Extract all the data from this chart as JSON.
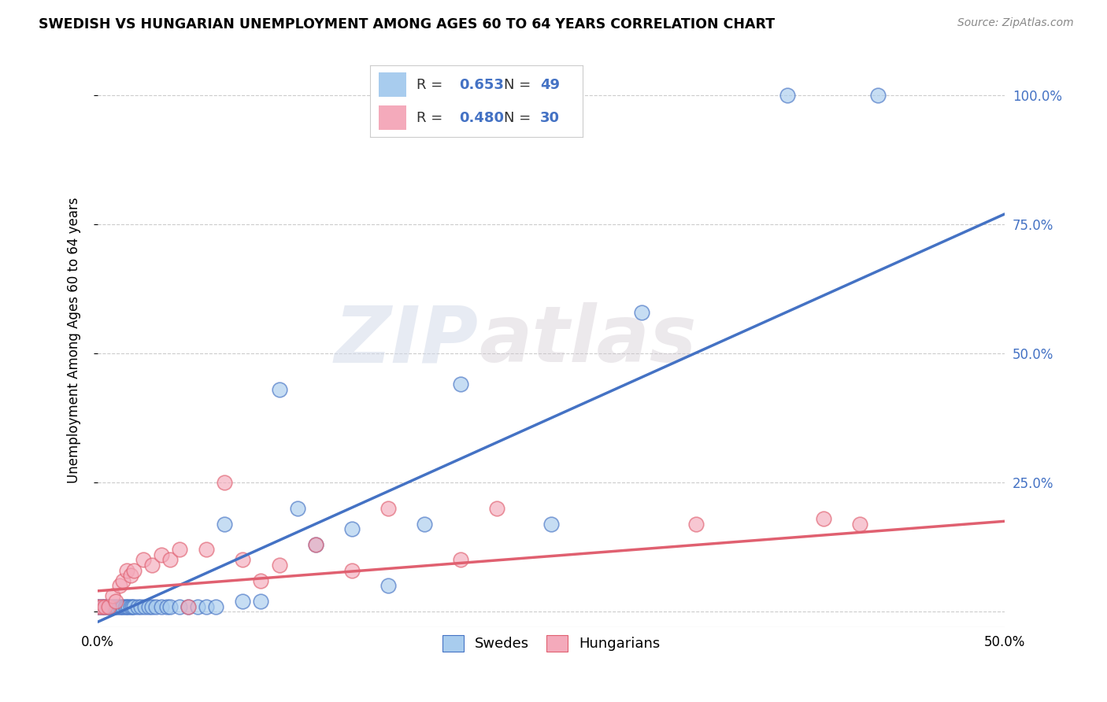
{
  "title": "SWEDISH VS HUNGARIAN UNEMPLOYMENT AMONG AGES 60 TO 64 YEARS CORRELATION CHART",
  "source": "Source: ZipAtlas.com",
  "ylabel": "Unemployment Among Ages 60 to 64 years",
  "xlim": [
    0.0,
    0.5
  ],
  "ylim": [
    -0.03,
    1.08
  ],
  "sweden_color": "#A8CCEE",
  "hungary_color": "#F4AABB",
  "sweden_line_color": "#4472C4",
  "hungary_line_color": "#E06070",
  "sweden_R": 0.653,
  "sweden_N": 49,
  "hungary_R": 0.48,
  "hungary_N": 30,
  "watermark_zip": "ZIP",
  "watermark_atlas": "atlas",
  "background_color": "#FFFFFF",
  "grid_color": "#CCCCCC",
  "sweden_scatter_x": [
    0.0,
    0.001,
    0.002,
    0.003,
    0.004,
    0.005,
    0.006,
    0.007,
    0.008,
    0.009,
    0.01,
    0.011,
    0.012,
    0.013,
    0.014,
    0.015,
    0.016,
    0.017,
    0.018,
    0.019,
    0.02,
    0.022,
    0.024,
    0.026,
    0.028,
    0.03,
    0.032,
    0.035,
    0.038,
    0.04,
    0.045,
    0.05,
    0.055,
    0.06,
    0.065,
    0.07,
    0.08,
    0.09,
    0.1,
    0.11,
    0.12,
    0.14,
    0.16,
    0.18,
    0.2,
    0.25,
    0.3,
    0.38,
    0.43
  ],
  "sweden_scatter_y": [
    0.01,
    0.01,
    0.01,
    0.01,
    0.01,
    0.01,
    0.01,
    0.01,
    0.01,
    0.01,
    0.01,
    0.01,
    0.01,
    0.01,
    0.01,
    0.01,
    0.01,
    0.01,
    0.01,
    0.01,
    0.01,
    0.01,
    0.01,
    0.01,
    0.01,
    0.01,
    0.01,
    0.01,
    0.01,
    0.01,
    0.01,
    0.01,
    0.01,
    0.01,
    0.01,
    0.17,
    0.02,
    0.02,
    0.43,
    0.2,
    0.13,
    0.16,
    0.05,
    0.17,
    0.44,
    0.17,
    0.58,
    1.0,
    1.0
  ],
  "hungary_scatter_x": [
    0.0,
    0.002,
    0.004,
    0.006,
    0.008,
    0.01,
    0.012,
    0.014,
    0.016,
    0.018,
    0.02,
    0.025,
    0.03,
    0.035,
    0.04,
    0.045,
    0.05,
    0.06,
    0.07,
    0.08,
    0.09,
    0.1,
    0.12,
    0.14,
    0.16,
    0.2,
    0.22,
    0.33,
    0.4,
    0.42
  ],
  "hungary_scatter_y": [
    0.01,
    0.01,
    0.01,
    0.01,
    0.03,
    0.02,
    0.05,
    0.06,
    0.08,
    0.07,
    0.08,
    0.1,
    0.09,
    0.11,
    0.1,
    0.12,
    0.01,
    0.12,
    0.25,
    0.1,
    0.06,
    0.09,
    0.13,
    0.08,
    0.2,
    0.1,
    0.2,
    0.17,
    0.18,
    0.17
  ]
}
